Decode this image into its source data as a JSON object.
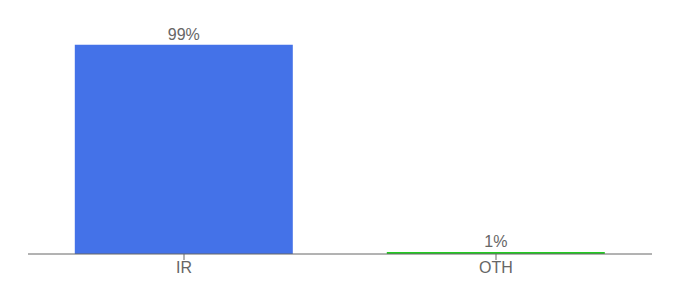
{
  "chart_data": {
    "type": "bar",
    "categories": [
      "IR",
      "OTH"
    ],
    "values": [
      99,
      1
    ],
    "value_labels": [
      "99%",
      "1%"
    ],
    "data_labels": true,
    "colors": [
      "#4472e8",
      "#22cc22"
    ],
    "ylim": [
      0,
      105
    ],
    "tick_labels": "x",
    "grid": false
  }
}
